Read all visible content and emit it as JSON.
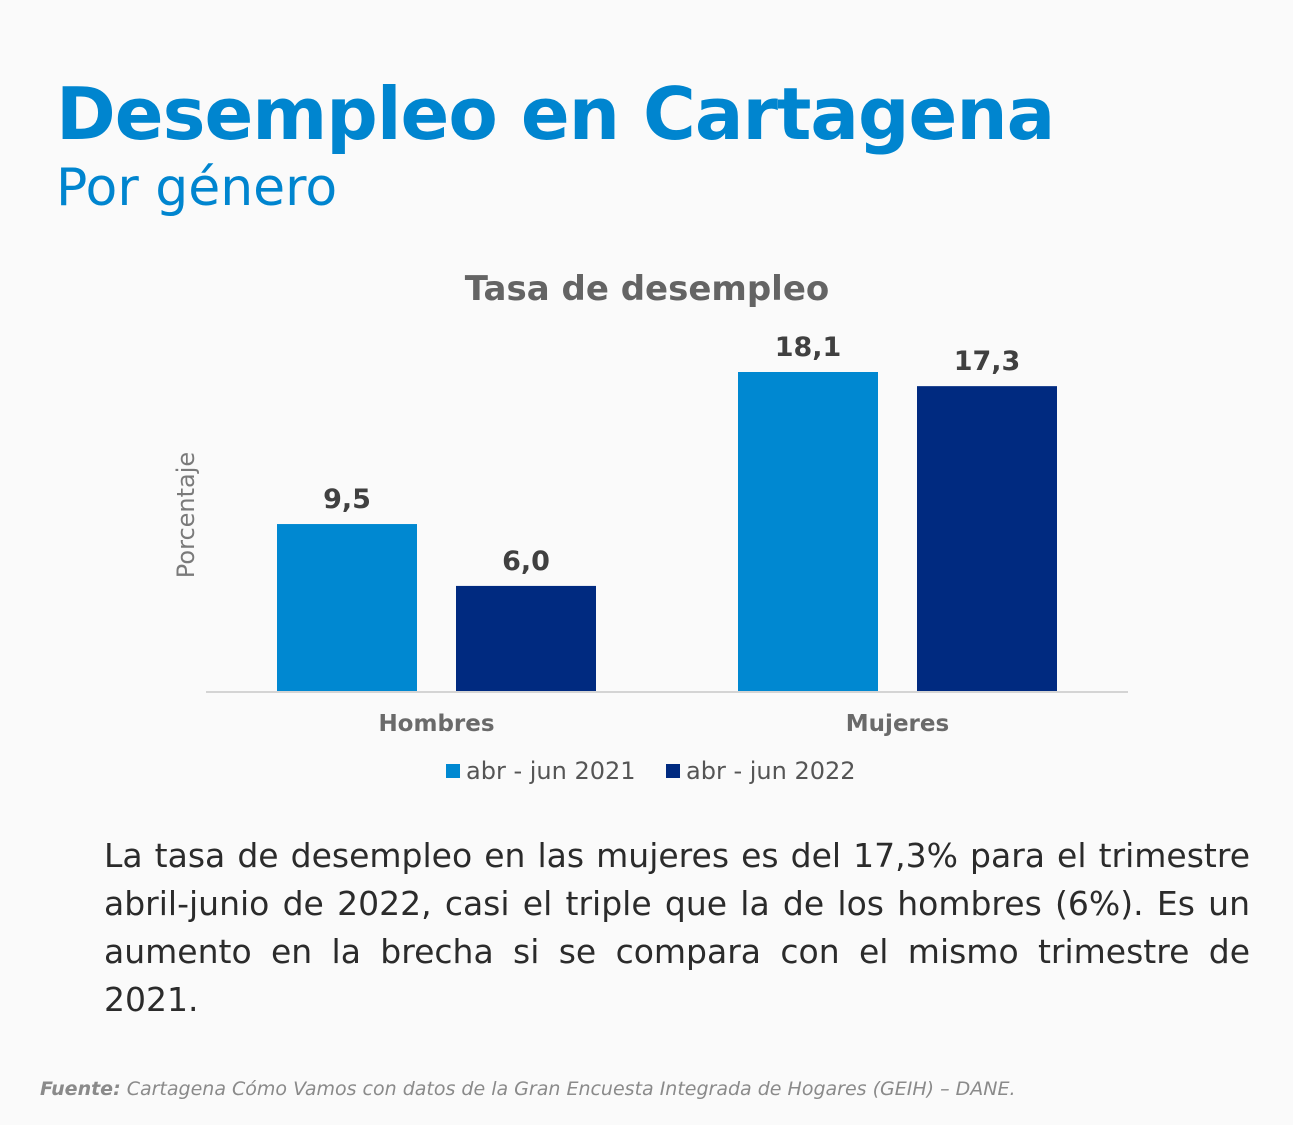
{
  "header": {
    "title": "Desempleo en Cartagena",
    "subtitle": "Por género"
  },
  "chart_data": {
    "type": "bar",
    "title": "Tasa de desempleo",
    "ylabel": "Porcentaje",
    "xlabel": "",
    "categories": [
      "Hombres",
      "Mujeres"
    ],
    "series": [
      {
        "name": "abr - jun 2021",
        "values": [
          9.5,
          18.1
        ],
        "labels": [
          "9,5",
          "18,1"
        ],
        "color": "#0088d1"
      },
      {
        "name": "abr - jun 2022",
        "values": [
          6.0,
          17.3
        ],
        "labels": [
          "6,0",
          "17,3"
        ],
        "color": "#002a80"
      }
    ],
    "ylim": [
      0,
      18.1
    ],
    "grid": false,
    "legend": "bottom"
  },
  "body": {
    "paragraph": "La tasa de desempleo en las mujeres es del 17,3% para el trimestre abril-junio de 2022, casi el triple que la de los hombres (6%). Es un aumento en la brecha si se compara con el mismo trimestre de 2021."
  },
  "footer": {
    "source_label": "Fuente:",
    "source_text": " Cartagena Cómo Vamos con datos de la Gran Encuesta Integrada de Hogares (GEIH) – DANE."
  }
}
